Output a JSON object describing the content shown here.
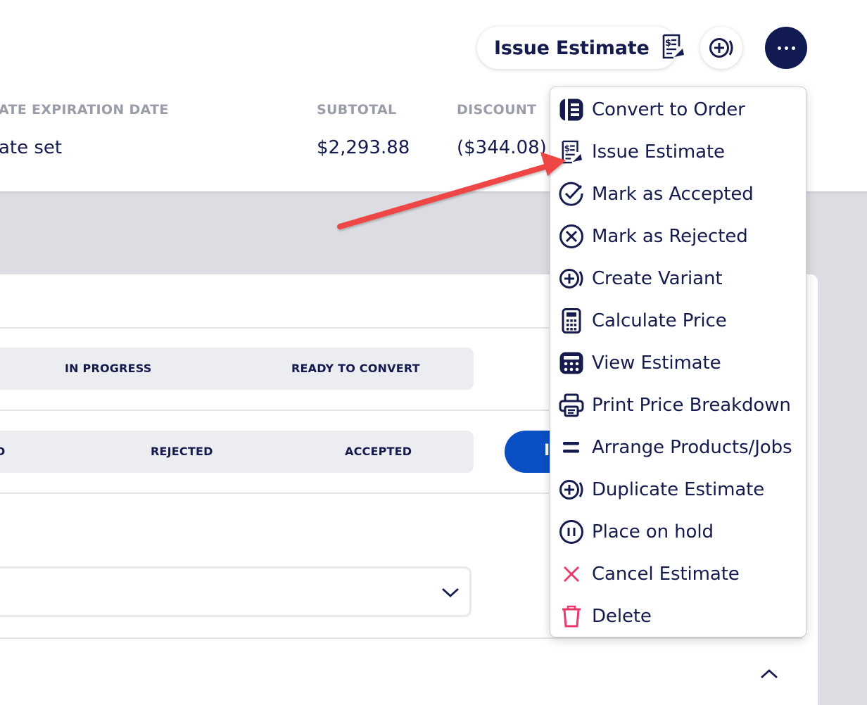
{
  "header": {
    "issue_estimate_button": "Issue Estimate",
    "columns": [
      {
        "label": "ATE EXPIRATION DATE",
        "value": "ate set"
      },
      {
        "label": "SUBTOTAL",
        "value": "$2,293.88"
      },
      {
        "label": "DISCOUNT",
        "value": "($344.08)"
      }
    ]
  },
  "status_tabs": {
    "row1": [
      "IN PROGRESS",
      "READY TO CONVERT"
    ],
    "row2": [
      "D",
      "REJECTED",
      "ACCEPTED"
    ]
  },
  "primary_button": {
    "label": "I"
  },
  "menu": {
    "items": [
      {
        "label": "Convert to Order",
        "icon": "convert-order-icon"
      },
      {
        "label": "Issue Estimate",
        "icon": "issue-estimate-icon"
      },
      {
        "label": "Mark as Accepted",
        "icon": "check-circle-icon"
      },
      {
        "label": "Mark as Rejected",
        "icon": "x-circle-icon"
      },
      {
        "label": "Create Variant",
        "icon": "plus-circle-icon"
      },
      {
        "label": "Calculate Price",
        "icon": "calculator-icon"
      },
      {
        "label": "View Estimate",
        "icon": "calculator-filled-icon"
      },
      {
        "label": "Print Price Breakdown",
        "icon": "printer-icon"
      },
      {
        "label": "Arrange Products/Jobs",
        "icon": "equals-icon"
      },
      {
        "label": "Duplicate Estimate",
        "icon": "plus-circle-icon"
      },
      {
        "label": "Place on hold",
        "icon": "pause-circle-icon"
      },
      {
        "label": "Cancel Estimate",
        "icon": "close-icon"
      },
      {
        "label": "Delete",
        "icon": "trash-icon"
      }
    ]
  },
  "colors": {
    "navy": "#151c4d",
    "dark_button": "#121a52",
    "blue_button": "#0b4fc4",
    "danger": "#e8396a",
    "arrow": "#ee4444",
    "muted_label": "#9a9ca8"
  }
}
